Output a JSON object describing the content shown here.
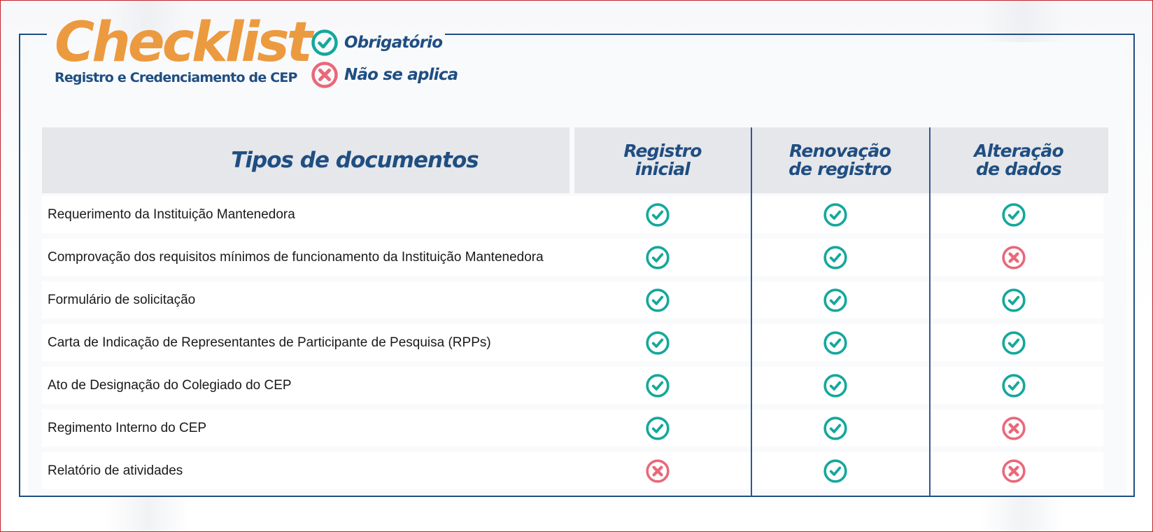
{
  "header": {
    "title": "Checklist",
    "subtitle": "Registro e Credenciamento de CEP"
  },
  "legend": [
    {
      "icon": "check-circle-icon",
      "label": "Obrigatório",
      "color": "#14a89c"
    },
    {
      "icon": "x-circle-icon",
      "label": "Não se aplica",
      "color": "#e9687a"
    }
  ],
  "colors": {
    "brand_orange": "#ec9a3f",
    "brand_blue": "#1f4e82",
    "required": "#14a89c",
    "not_applicable": "#e9687a",
    "header_bg": "#e6e7ea",
    "frame_red": "#c4232a"
  },
  "table": {
    "headers": {
      "documents": "Tipos de documentos",
      "col1_line1": "Registro",
      "col1_line2": "inicial",
      "col2_line1": "Renovação",
      "col2_line2": "de registro",
      "col3_line1": "Alteração",
      "col3_line2": "de dados"
    },
    "rows": [
      {
        "document": "Requerimento da Instituição Mantenedora",
        "registro_inicial": "required",
        "renovacao": "required",
        "alteracao": "required"
      },
      {
        "document": "Comprovação dos requisitos mínimos de funcionamento da Instituição Mantenedora",
        "registro_inicial": "required",
        "renovacao": "required",
        "alteracao": "not_applicable"
      },
      {
        "document": "Formulário de solicitação",
        "registro_inicial": "required",
        "renovacao": "required",
        "alteracao": "required"
      },
      {
        "document": "Carta de Indicação de Representantes de Participante de Pesquisa (RPPs)",
        "registro_inicial": "required",
        "renovacao": "required",
        "alteracao": "required"
      },
      {
        "document": "Ato de Designação do Colegiado do CEP",
        "registro_inicial": "required",
        "renovacao": "required",
        "alteracao": "required"
      },
      {
        "document": "Regimento Interno do CEP",
        "registro_inicial": "required",
        "renovacao": "required",
        "alteracao": "not_applicable"
      },
      {
        "document": "Relatório de atividades",
        "registro_inicial": "not_applicable",
        "renovacao": "required",
        "alteracao": "not_applicable"
      }
    ]
  }
}
